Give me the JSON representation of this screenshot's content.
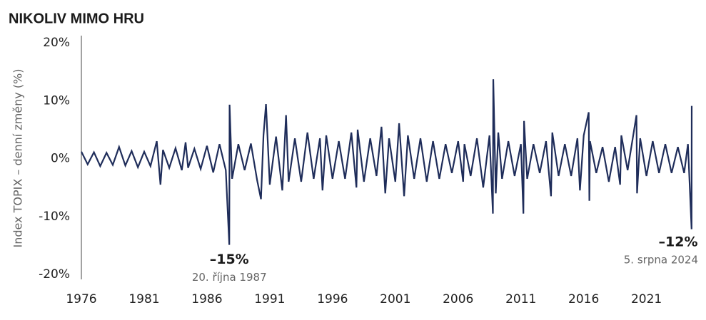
{
  "chart_data": {
    "type": "line",
    "title": "NIKOLIV MIMO HRU",
    "y_label": "Index TOPIX – denní změny (%)",
    "color": "#1f2d5a",
    "xlim": [
      1976,
      2025
    ],
    "xticks": [
      1976,
      1981,
      1986,
      1991,
      1996,
      2001,
      2006,
      2011,
      2016,
      2021
    ],
    "ylim": [
      -20,
      20
    ],
    "yticks": [
      {
        "value": -20,
        "label": "-20%"
      },
      {
        "value": -10,
        "label": "-10%"
      },
      {
        "value": 0,
        "label": "0%"
      },
      {
        "value": 10,
        "label": "10%"
      },
      {
        "value": 20,
        "label": "20%"
      }
    ],
    "grid": false,
    "x": [
      1976.0,
      1976.5,
      1977.0,
      1977.5,
      1978.0,
      1978.5,
      1979.0,
      1979.5,
      1980.0,
      1980.5,
      1981.0,
      1981.5,
      1982.0,
      1982.3,
      1982.5,
      1983.0,
      1983.5,
      1984.0,
      1984.3,
      1984.5,
      1985.0,
      1985.5,
      1986.0,
      1986.5,
      1987.0,
      1987.5,
      1987.78,
      1987.8,
      1988.0,
      1988.5,
      1989.0,
      1989.5,
      1990.0,
      1990.3,
      1990.5,
      1990.7,
      1991.0,
      1991.5,
      1992.0,
      1992.3,
      1992.5,
      1993.0,
      1993.5,
      1994.0,
      1994.5,
      1995.0,
      1995.2,
      1995.5,
      1996.0,
      1996.5,
      1997.0,
      1997.5,
      1997.9,
      1998.0,
      1998.5,
      1999.0,
      1999.5,
      1999.9,
      2000.2,
      2000.5,
      2001.0,
      2001.3,
      2001.7,
      2002.0,
      2002.5,
      2003.0,
      2003.5,
      2004.0,
      2004.5,
      2005.0,
      2005.5,
      2006.0,
      2006.4,
      2006.5,
      2007.0,
      2007.5,
      2008.0,
      2008.5,
      2008.77,
      2008.8,
      2009.0,
      2009.2,
      2009.5,
      2010.0,
      2010.5,
      2011.0,
      2011.2,
      2011.25,
      2011.5,
      2012.0,
      2012.5,
      2013.0,
      2013.4,
      2013.5,
      2014.0,
      2014.5,
      2015.0,
      2015.5,
      2015.7,
      2016.0,
      2016.4,
      2016.45,
      2016.5,
      2017.0,
      2017.5,
      2018.0,
      2018.5,
      2018.9,
      2019.0,
      2019.5,
      2020.2,
      2020.25,
      2020.5,
      2021.0,
      2021.5,
      2022.0,
      2022.5,
      2023.0,
      2023.5,
      2024.0,
      2024.3,
      2024.59,
      2024.6
    ],
    "values": [
      1.2,
      -1.0,
      1.1,
      -1.3,
      1.0,
      -1.1,
      2.0,
      -1.2,
      1.3,
      -1.5,
      1.2,
      -1.3,
      3.0,
      -4.5,
      1.5,
      -1.6,
      1.8,
      -2.0,
      2.8,
      -1.6,
      1.7,
      -1.8,
      2.2,
      -2.4,
      2.5,
      -2.0,
      -14.9,
      9.3,
      -3.5,
      2.5,
      -2.0,
      2.6,
      -3.8,
      -7.0,
      4.0,
      9.4,
      -4.5,
      3.8,
      -5.5,
      7.5,
      -4.0,
      3.5,
      -4.0,
      4.5,
      -3.5,
      3.5,
      -5.5,
      4.0,
      -3.5,
      3.0,
      -3.5,
      4.5,
      -5.0,
      5.0,
      -4.0,
      3.5,
      -3.0,
      5.5,
      -6.0,
      3.5,
      -4.0,
      6.1,
      -6.5,
      4.0,
      -3.5,
      3.5,
      -4.0,
      3.0,
      -3.5,
      2.5,
      -2.5,
      3.0,
      -4.0,
      2.5,
      -3.0,
      3.5,
      -5.0,
      4.0,
      -9.5,
      13.7,
      -6.0,
      4.5,
      -3.5,
      3.0,
      -3.0,
      2.5,
      -9.5,
      6.5,
      -3.5,
      2.5,
      -2.5,
      3.0,
      -6.5,
      4.5,
      -3.0,
      2.5,
      -3.0,
      3.5,
      -5.5,
      4.0,
      8.0,
      -7.3,
      3.0,
      -2.5,
      2.0,
      -4.0,
      2.0,
      -4.5,
      4.0,
      -2.0,
      7.5,
      -6.0,
      3.5,
      -3.0,
      3.0,
      -2.5,
      2.5,
      -2.5,
      2.0,
      -2.5,
      2.5,
      -12.2,
      9.1
    ],
    "annotations": [
      {
        "x": 1987.78,
        "value": -15,
        "label": "–15%",
        "date": "20. října 1987"
      },
      {
        "x": 2024.59,
        "value": -12,
        "label": "–12%",
        "date": "5. srpna 2024"
      }
    ]
  }
}
